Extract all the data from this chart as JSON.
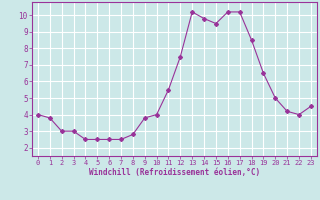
{
  "x": [
    0,
    1,
    2,
    3,
    4,
    5,
    6,
    7,
    8,
    9,
    10,
    11,
    12,
    13,
    14,
    15,
    16,
    17,
    18,
    19,
    20,
    21,
    22,
    23
  ],
  "y": [
    4.0,
    3.8,
    3.0,
    3.0,
    2.5,
    2.5,
    2.5,
    2.5,
    2.8,
    3.8,
    4.0,
    5.5,
    7.5,
    10.2,
    9.8,
    9.5,
    10.2,
    10.2,
    8.5,
    6.5,
    5.0,
    4.2,
    4.0,
    4.5
  ],
  "line_color": "#993399",
  "marker": "D",
  "marker_size": 2,
  "bg_color": "#cce8e8",
  "grid_color": "#ffffff",
  "xlabel": "Windchill (Refroidissement éolien,°C)",
  "xlabel_color": "#993399",
  "tick_color": "#993399",
  "xlim": [
    -0.5,
    23.5
  ],
  "ylim": [
    1.5,
    10.8
  ],
  "yticks": [
    2,
    3,
    4,
    5,
    6,
    7,
    8,
    9,
    10
  ],
  "xticks": [
    0,
    1,
    2,
    3,
    4,
    5,
    6,
    7,
    8,
    9,
    10,
    11,
    12,
    13,
    14,
    15,
    16,
    17,
    18,
    19,
    20,
    21,
    22,
    23
  ]
}
